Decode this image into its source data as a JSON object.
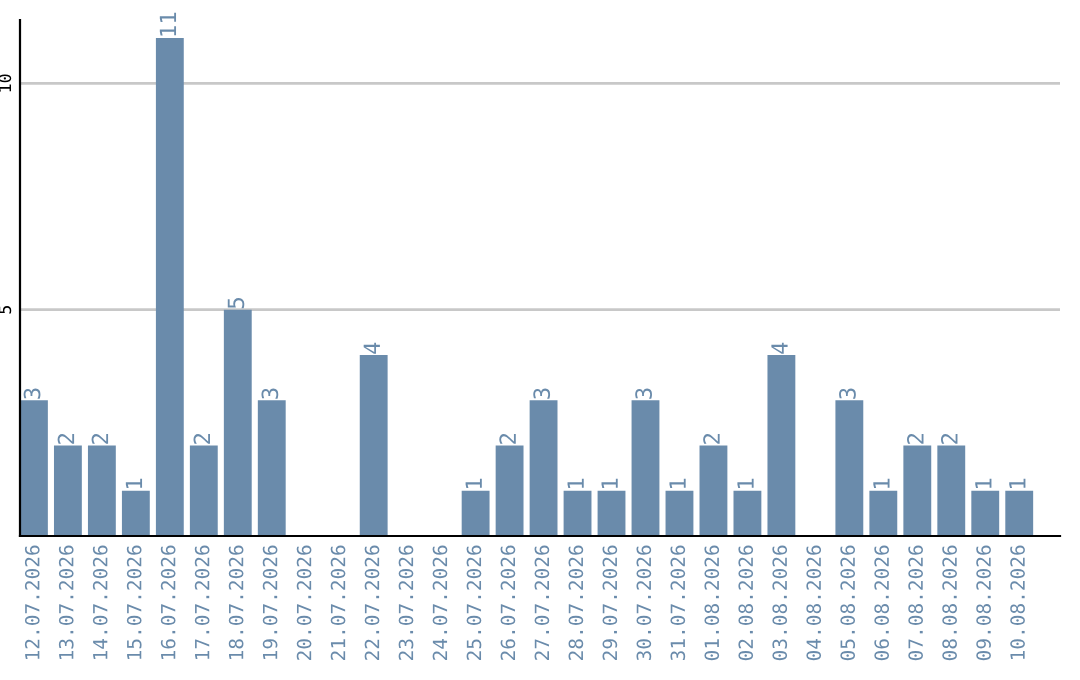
{
  "chart_data": {
    "type": "bar",
    "categories": [
      "12.07.2026",
      "13.07.2026",
      "14.07.2026",
      "15.07.2026",
      "16.07.2026",
      "17.07.2026",
      "18.07.2026",
      "19.07.2026",
      "20.07.2026",
      "21.07.2026",
      "22.07.2026",
      "23.07.2026",
      "24.07.2026",
      "25.07.2026",
      "26.07.2026",
      "27.07.2026",
      "28.07.2026",
      "29.07.2026",
      "30.07.2026",
      "31.07.2026",
      "01.08.2026",
      "02.08.2026",
      "03.08.2026",
      "04.08.2026",
      "05.08.2026",
      "06.08.2026",
      "07.08.2026",
      "08.08.2026",
      "09.08.2026",
      "10.08.2026"
    ],
    "values": [
      3,
      2,
      2,
      1,
      11,
      2,
      5,
      3,
      0,
      0,
      4,
      0,
      0,
      1,
      2,
      3,
      1,
      1,
      3,
      1,
      2,
      1,
      4,
      0,
      3,
      1,
      2,
      2,
      1,
      1
    ],
    "value_labels": [
      "3",
      "2",
      "2",
      "1",
      "11",
      "2",
      "5",
      "3",
      null,
      null,
      "4",
      null,
      null,
      "1",
      "2",
      "3",
      "1",
      "1",
      "3",
      "1",
      "2",
      "1",
      "4",
      null,
      "3",
      "1",
      "2",
      "2",
      "1",
      "1"
    ],
    "color": "#6a8bab",
    "ylim": [
      0,
      11.4
    ],
    "yticks": [
      5,
      10
    ],
    "grid": "y",
    "legend": false
  }
}
